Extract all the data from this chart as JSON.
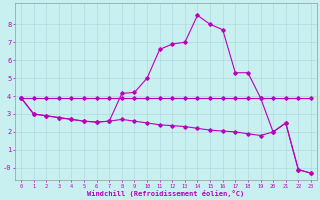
{
  "xlabel": "Windchill (Refroidissement éolien,°C)",
  "background_color": "#c8f0f0",
  "grid_color": "#b0d8e0",
  "line_color": "#bb00bb",
  "x_ticks": [
    0,
    1,
    2,
    3,
    4,
    5,
    6,
    7,
    8,
    9,
    10,
    11,
    12,
    13,
    14,
    15,
    16,
    17,
    18,
    19,
    20,
    21,
    22,
    23
  ],
  "y_ticks": [
    0,
    1,
    2,
    3,
    4,
    5,
    6,
    7,
    8
  ],
  "ylim": [
    -0.7,
    9.2
  ],
  "xlim": [
    -0.5,
    23.5
  ],
  "line1_x": [
    0,
    1,
    2,
    3,
    4,
    5,
    6,
    7,
    8,
    9,
    10,
    11,
    12,
    13,
    14,
    15,
    16,
    17,
    18,
    19,
    20,
    21,
    22,
    23
  ],
  "line1_y": [
    3.9,
    3.9,
    3.9,
    3.9,
    3.9,
    3.9,
    3.9,
    3.9,
    3.9,
    3.9,
    3.9,
    3.9,
    3.9,
    3.9,
    3.9,
    3.9,
    3.9,
    3.9,
    3.9,
    3.9,
    3.9,
    3.9,
    3.9,
    3.9
  ],
  "line2_x": [
    0,
    1,
    2,
    3,
    4,
    5,
    6,
    7,
    8,
    9,
    10,
    11,
    12,
    13,
    14,
    15,
    16,
    17,
    18,
    19,
    20,
    21,
    22,
    23
  ],
  "line2_y": [
    3.9,
    3.0,
    2.9,
    2.8,
    2.7,
    2.6,
    2.55,
    2.6,
    2.7,
    2.6,
    2.5,
    2.4,
    2.35,
    2.3,
    2.2,
    2.1,
    2.05,
    2.0,
    1.9,
    1.8,
    2.0,
    2.5,
    -0.1,
    -0.3
  ],
  "line3_x": [
    0,
    1,
    2,
    3,
    4,
    5,
    6,
    7,
    8,
    9,
    10,
    11,
    12,
    13,
    14,
    15,
    16,
    17,
    18,
    19,
    20,
    21,
    22,
    23
  ],
  "line3_y": [
    3.9,
    3.0,
    2.9,
    2.8,
    2.7,
    2.6,
    2.55,
    2.6,
    4.15,
    4.2,
    5.0,
    6.6,
    6.9,
    7.0,
    8.5,
    8.0,
    7.7,
    5.3,
    5.3,
    3.9,
    2.0,
    2.5,
    -0.1,
    -0.3
  ]
}
